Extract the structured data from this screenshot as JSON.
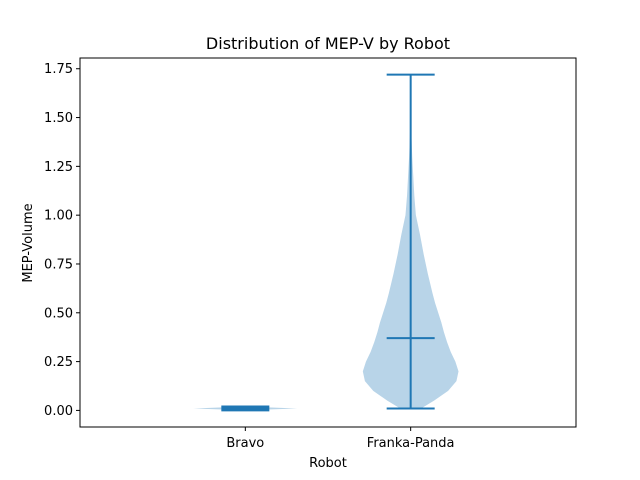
{
  "chart_data": {
    "type": "violin",
    "title": "Distribution of MEP-V by Robot",
    "xlabel": "Robot",
    "ylabel": "MEP-Volume",
    "categories": [
      "Bravo",
      "Franka-Panda"
    ],
    "ylim": [
      -0.085,
      1.805
    ],
    "yticks": [
      "0.00",
      "0.25",
      "0.50",
      "0.75",
      "1.00",
      "1.25",
      "1.50",
      "1.75"
    ],
    "grid": false,
    "colors": {
      "body": "#b8d4e8",
      "lines": "#1f77b4"
    },
    "violins": [
      {
        "category": "Bravo",
        "min": 0.0,
        "median": 0.01,
        "max": 0.02,
        "density": [
          [
            0.0,
            0.02
          ],
          [
            0.005,
            0.5
          ],
          [
            0.01,
            1.0
          ],
          [
            0.015,
            0.5
          ],
          [
            0.02,
            0.02
          ]
        ]
      },
      {
        "category": "Franka-Panda",
        "min": 0.01,
        "median": 0.37,
        "max": 1.72,
        "density": [
          [
            0.01,
            0.2
          ],
          [
            0.05,
            0.45
          ],
          [
            0.1,
            0.72
          ],
          [
            0.15,
            0.88
          ],
          [
            0.2,
            0.92
          ],
          [
            0.25,
            0.86
          ],
          [
            0.3,
            0.77
          ],
          [
            0.35,
            0.7
          ],
          [
            0.4,
            0.64
          ],
          [
            0.45,
            0.59
          ],
          [
            0.5,
            0.53
          ],
          [
            0.55,
            0.47
          ],
          [
            0.6,
            0.42
          ],
          [
            0.7,
            0.33
          ],
          [
            0.8,
            0.25
          ],
          [
            0.9,
            0.18
          ],
          [
            1.0,
            0.1
          ],
          [
            1.1,
            0.07
          ],
          [
            1.2,
            0.05
          ],
          [
            1.3,
            0.03
          ],
          [
            1.4,
            0.015
          ],
          [
            1.5,
            0.006
          ],
          [
            1.6,
            0.003
          ],
          [
            1.72,
            0.0
          ]
        ]
      }
    ]
  }
}
